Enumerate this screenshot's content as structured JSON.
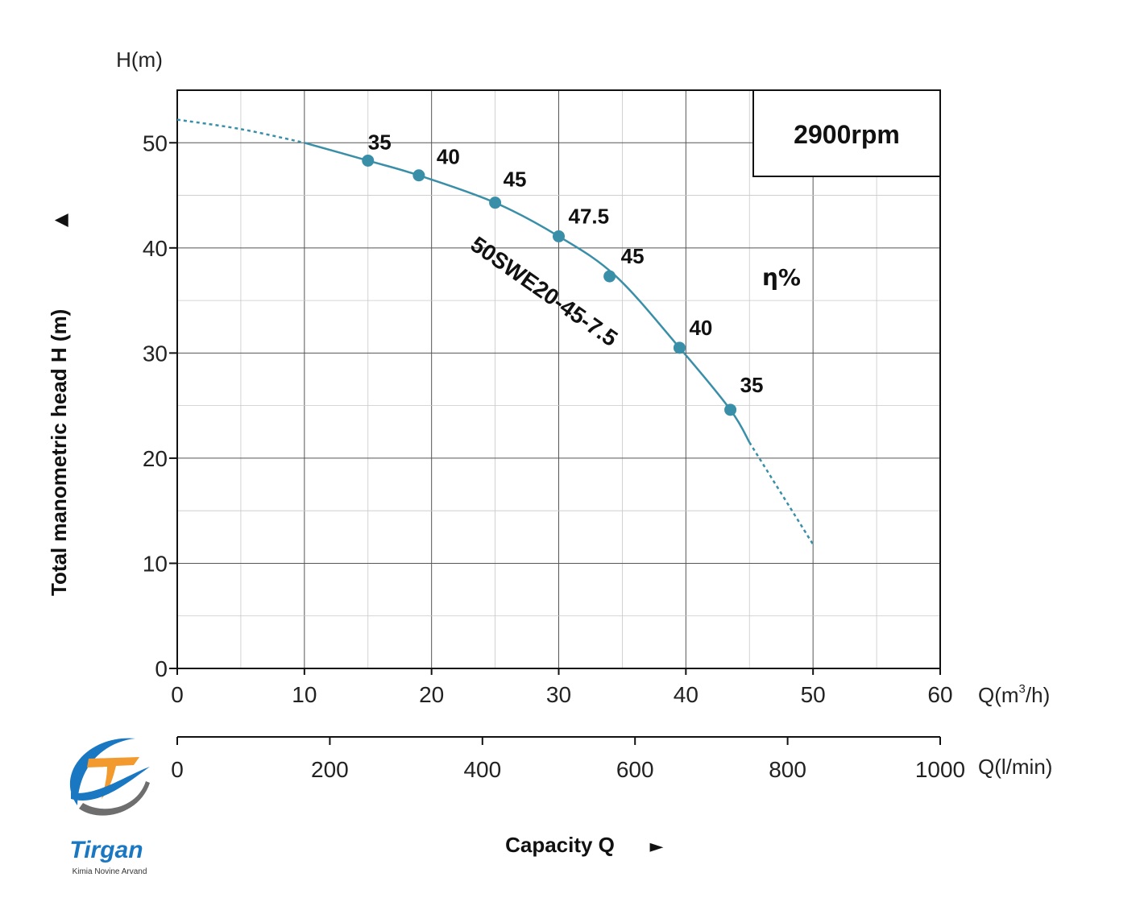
{
  "chart_data": {
    "type": "line",
    "title": "",
    "speed_label": "2900rpm",
    "efficiency_symbol": "η%",
    "model_label": "50SWE20-45-7.5",
    "y_unit_label": "H(m)",
    "ylabel": "Total manometric head H (m)",
    "ylabel_arrow": "▲",
    "xlabel": "Capacity Q",
    "xlabel_arrow": "►",
    "x_unit_label": "Q(m³/h)",
    "x_unit_base": "Q(m",
    "x_unit_sup": "3",
    "x_unit_tail": "/h)",
    "x2_unit_label": "Q(l/min)",
    "xlim": [
      0,
      60
    ],
    "ylim": [
      0,
      55
    ],
    "x_ticks": [
      0,
      10,
      20,
      30,
      40,
      50,
      60
    ],
    "y_ticks": [
      0,
      10,
      20,
      30,
      40,
      50
    ],
    "x2_lim": [
      0,
      1000
    ],
    "x2_ticks": [
      0,
      200,
      400,
      600,
      800,
      1000
    ],
    "grid": true,
    "line_color": "#3a8fa8",
    "series": [
      {
        "name": "50SWE20-45-7.5",
        "x": [
          0,
          5,
          10,
          15,
          19,
          25,
          30,
          34.5,
          39.5,
          43.5,
          45,
          50
        ],
        "y": [
          52.2,
          51.3,
          50.0,
          48.3,
          46.9,
          44.3,
          41.1,
          37.3,
          30.5,
          24.6,
          21.5,
          11.8
        ],
        "solid_range": [
          10,
          45
        ]
      }
    ],
    "efficiency_points": [
      {
        "x": 15,
        "y": 48.3,
        "label": "35"
      },
      {
        "x": 19,
        "y": 46.9,
        "label": "40"
      },
      {
        "x": 25,
        "y": 44.3,
        "label": "45"
      },
      {
        "x": 30,
        "y": 41.1,
        "label": "47.5"
      },
      {
        "x": 34,
        "y": 37.3,
        "label": "45"
      },
      {
        "x": 39.5,
        "y": 30.5,
        "label": "40"
      },
      {
        "x": 43.5,
        "y": 24.6,
        "label": "35"
      }
    ]
  },
  "logo": {
    "name": "Tirgan",
    "tagline": "Kimia Novine Arvand",
    "colors": {
      "blue": "#1a78c2",
      "orange": "#f29a2e",
      "gray": "#6e6e6e"
    }
  }
}
